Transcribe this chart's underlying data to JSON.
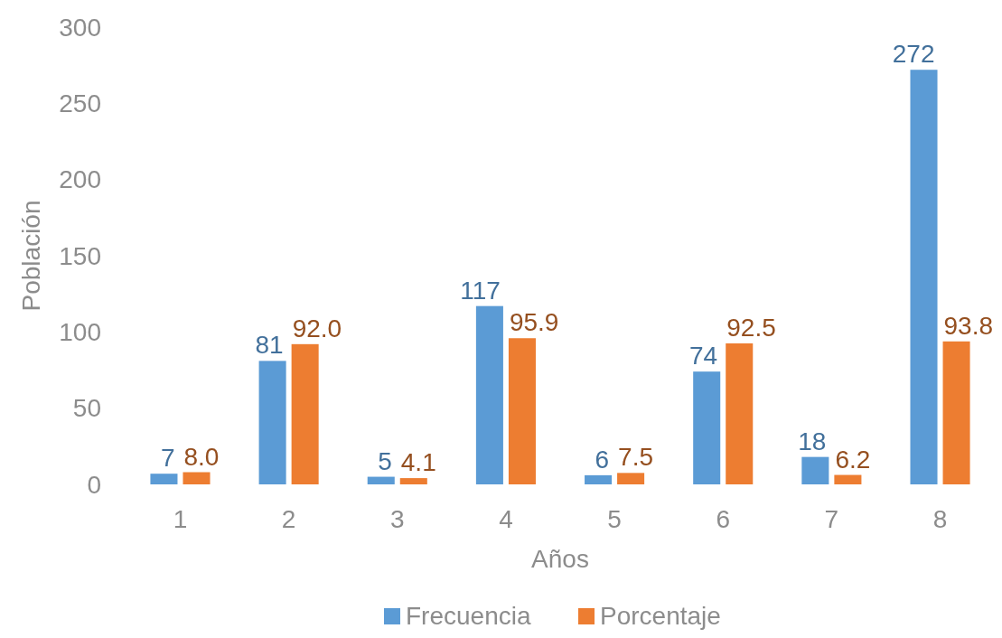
{
  "chart_data": {
    "type": "bar",
    "xlabel": "Años",
    "ylabel": "Población",
    "categories": [
      "1",
      "2",
      "3",
      "4",
      "5",
      "6",
      "7",
      "8"
    ],
    "series": [
      {
        "name": "Frecuencia",
        "color": "#5b9bd5",
        "values": [
          7,
          81,
          5,
          117,
          6,
          74,
          18,
          272
        ],
        "value_labels": [
          "7",
          "81",
          "5",
          "117",
          "6",
          "74",
          "18",
          "272"
        ]
      },
      {
        "name": "Porcentaje",
        "color": "#ed7d31",
        "values": [
          8.0,
          92.0,
          4.1,
          95.9,
          7.5,
          92.5,
          6.2,
          93.8
        ],
        "value_labels": [
          "8.0",
          "92.0",
          "4.1",
          "95.9",
          "7.5",
          "92.5",
          "6.2",
          "93.8"
        ]
      }
    ],
    "ylim": [
      0,
      300
    ],
    "yticks": [
      0,
      50,
      100,
      150,
      200,
      250,
      300
    ],
    "grid": false,
    "legend": "bottom"
  }
}
